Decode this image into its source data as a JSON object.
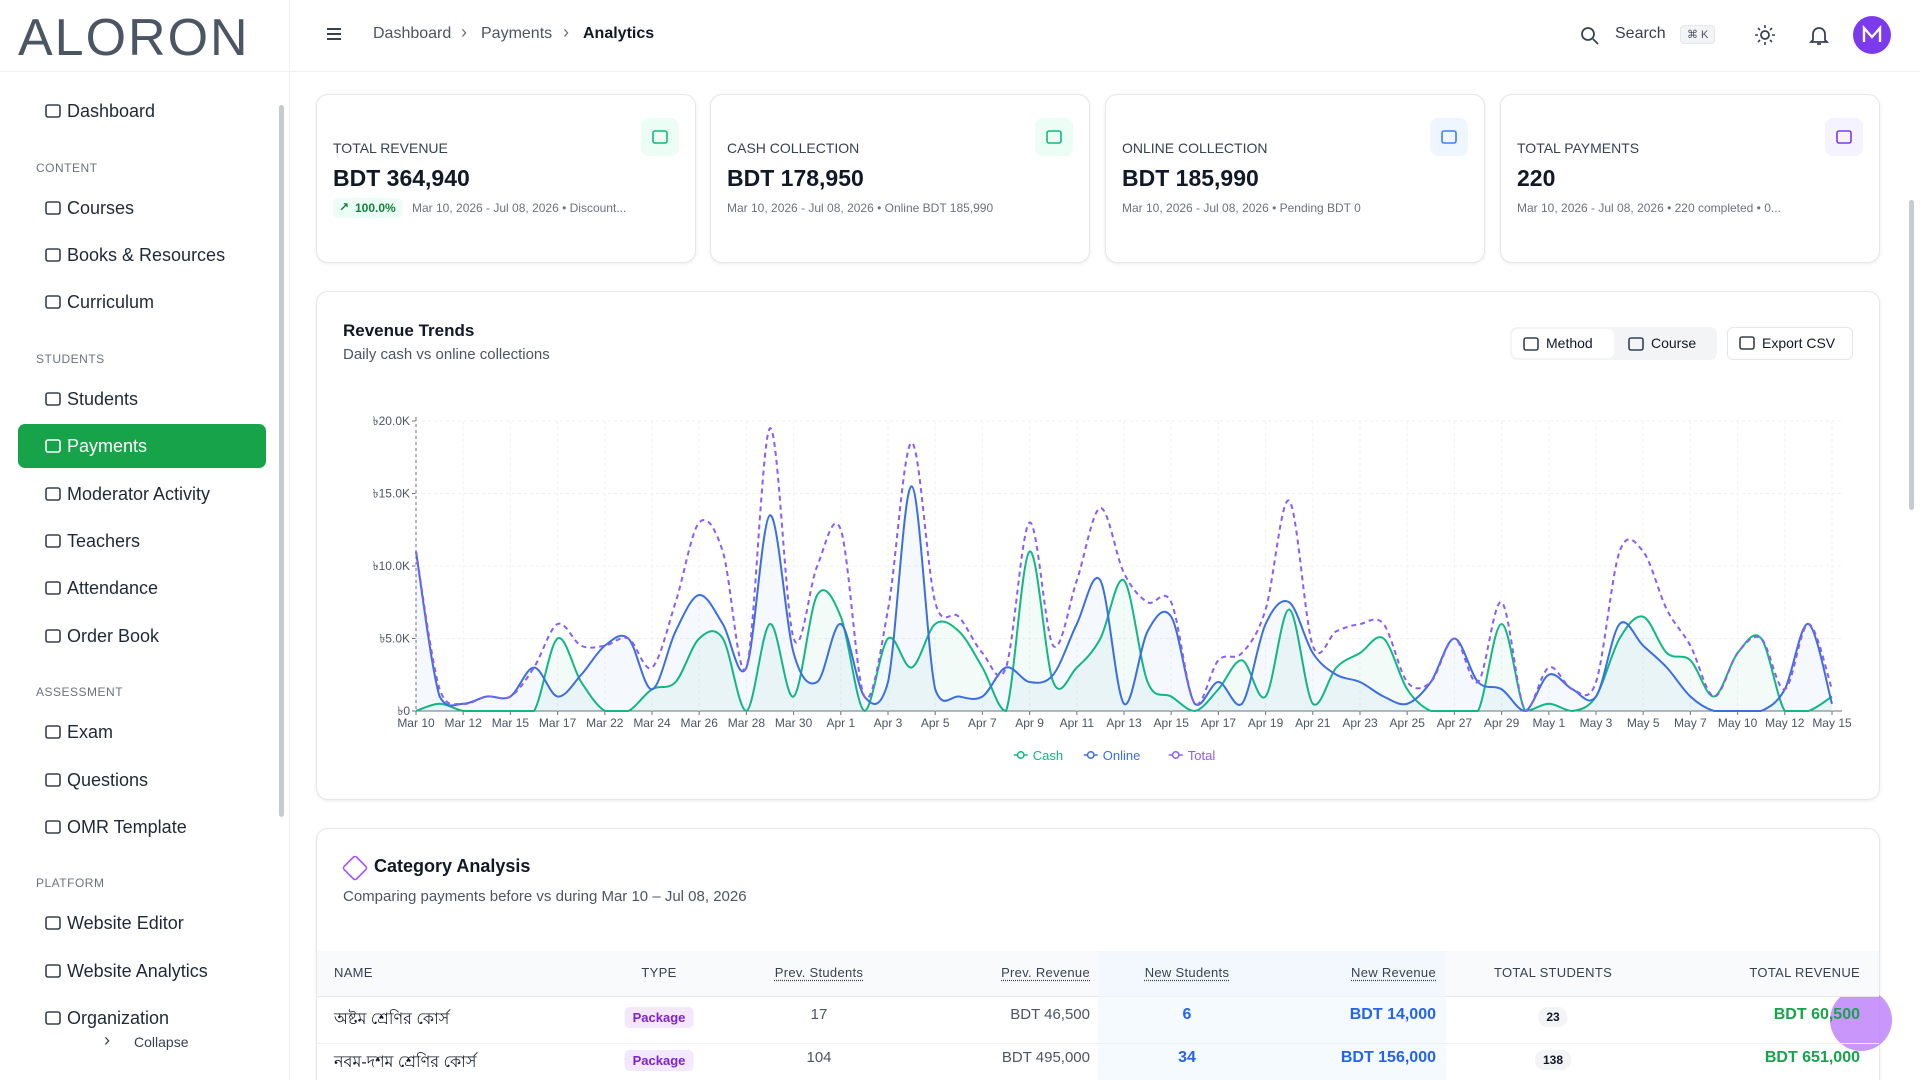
{
  "logo": "ALORON",
  "sidebar": {
    "top": "Dashboard",
    "active_item": "Payments",
    "sections": [
      {
        "heading": "CONTENT",
        "items": [
          "Courses",
          "Books & Resources",
          "Curriculum"
        ]
      },
      {
        "heading": "STUDENTS",
        "items": [
          "Students",
          "Payments",
          "Moderator Activity",
          "Teachers",
          "Attendance",
          "Order Book"
        ]
      },
      {
        "heading": "ASSESSMENT",
        "items": [
          "Exam",
          "Questions",
          "OMR Template"
        ]
      },
      {
        "heading": "PLATFORM",
        "items": [
          "Website Editor",
          "Website Analytics",
          "Organization"
        ]
      }
    ],
    "collapse": "Collapse"
  },
  "header": {
    "breadcrumbs": [
      "Dashboard",
      "Payments",
      "Analytics"
    ],
    "search": "Search",
    "shortcut": "⌘ K"
  },
  "cards": [
    {
      "label": "TOTAL REVENUE",
      "value": "BDT 364,940",
      "badge": "100.0%",
      "subtitle": "Mar 10, 2026 - Jul 08, 2026 • Discount..."
    },
    {
      "label": "CASH COLLECTION",
      "value": "BDT 178,950",
      "subtitle": "Mar 10, 2026 - Jul 08, 2026 • Online BDT 185,990"
    },
    {
      "label": "ONLINE COLLECTION",
      "value": "BDT 185,990",
      "subtitle": "Mar 10, 2026 - Jul 08, 2026 • Pending BDT 0"
    },
    {
      "label": "TOTAL PAYMENTS",
      "value": "220",
      "subtitle": "Mar 10, 2026 - Jul 08, 2026 • 220 completed • 0..."
    }
  ],
  "chart_panel": {
    "title": "Revenue Trends",
    "subtitle": "Daily cash vs online collections",
    "buttons": [
      "Method",
      "Course",
      "Export CSV"
    ]
  },
  "chart_data": {
    "type": "line",
    "categories": [
      "Mar 10",
      null,
      "Mar 12",
      null,
      "Mar 15",
      null,
      "Mar 17",
      null,
      "Mar 22",
      null,
      "Mar 24",
      null,
      "Mar 26",
      null,
      "Mar 28",
      null,
      "Mar 30",
      null,
      "Apr 1",
      null,
      "Apr 3",
      null,
      "Apr 5",
      null,
      "Apr 7",
      null,
      "Apr 9",
      null,
      "Apr 11",
      null,
      "Apr 13",
      null,
      "Apr 15",
      null,
      "Apr 17",
      null,
      "Apr 19",
      null,
      "Apr 21",
      null,
      "Apr 23",
      null,
      "Apr 25",
      null,
      "Apr 27",
      null,
      "Apr 29",
      null,
      "May 1",
      null,
      "May 3",
      null,
      "May 5",
      null,
      "May 7",
      null,
      "May 10",
      null,
      "May 12",
      null,
      "May 15"
    ],
    "series": [
      {
        "name": "Cash",
        "color": "#10b981",
        "values": [
          0,
          500,
          0,
          0,
          0,
          0,
          5000,
          2000,
          0,
          0,
          1500,
          2000,
          5000,
          5000,
          0,
          6000,
          1000,
          8000,
          6500,
          0,
          5000,
          3000,
          6000,
          5500,
          3000,
          0,
          11000,
          2000,
          3000,
          5000,
          9000,
          2000,
          1000,
          0,
          1500,
          3500,
          1000,
          7000,
          500,
          3000,
          4000,
          5000,
          1500,
          0,
          0,
          0,
          6000,
          0,
          500,
          0,
          1000,
          5000,
          6500,
          4000,
          3500,
          1000,
          4000,
          5000,
          0,
          0,
          1000
        ]
      },
      {
        "name": "Online",
        "color": "#3b6fe0",
        "values": [
          11000,
          1000,
          500,
          1000,
          1000,
          3000,
          1000,
          2500,
          4500,
          5000,
          1500,
          5500,
          8000,
          6000,
          3000,
          13500,
          4000,
          2000,
          6000,
          1000,
          2000,
          15500,
          1500,
          1000,
          1000,
          3000,
          2000,
          2500,
          6000,
          9000,
          500,
          5500,
          6500,
          500,
          2000,
          500,
          6000,
          7500,
          4000,
          2500,
          2000,
          1000,
          500,
          2000,
          5000,
          2000,
          1500,
          0,
          2500,
          1500,
          1000,
          6000,
          4500,
          3000,
          1000,
          0,
          0,
          0,
          1500,
          6000,
          500
        ]
      },
      {
        "name": "Total",
        "color": "#8b5cf6",
        "dashed": true,
        "values": [
          11000,
          1500,
          500,
          1000,
          1000,
          3000,
          6000,
          4500,
          4500,
          5000,
          3000,
          7500,
          13000,
          11000,
          3000,
          19500,
          5000,
          10000,
          12500,
          1000,
          7000,
          18500,
          7500,
          6500,
          4000,
          3000,
          13000,
          4500,
          9000,
          14000,
          9500,
          7500,
          7500,
          500,
          3500,
          4000,
          7000,
          14500,
          4500,
          5500,
          6000,
          6000,
          2000,
          2000,
          5000,
          2000,
          7500,
          0,
          3000,
          1500,
          2000,
          11000,
          11000,
          7000,
          4500,
          1000,
          4000,
          5000,
          1500,
          6000,
          1500
        ]
      }
    ],
    "ylim": [
      0,
      20000
    ],
    "yticks": [
      {
        "value": 0,
        "label": "৳0"
      },
      {
        "value": 5000,
        "label": "৳5.0K"
      },
      {
        "value": 10000,
        "label": "৳10.0K"
      },
      {
        "value": 15000,
        "label": "৳15.0K"
      },
      {
        "value": 20000,
        "label": "৳20.0K"
      }
    ],
    "grid": true,
    "legend": "bottom"
  },
  "table": {
    "title": "Category Analysis",
    "subtitle": "Comparing payments before vs during Mar 10 – Jul 08, 2026",
    "columns": [
      "NAME",
      "TYPE",
      "Prev. Students",
      "Prev. Revenue",
      "New Students",
      "New Revenue",
      "TOTAL STUDENTS",
      "TOTAL REVENUE"
    ],
    "rows": [
      [
        "অষ্টম শ্রেণির কোর্স",
        "Package",
        "17",
        "BDT 46,500",
        "6",
        "BDT 14,000",
        "23",
        "BDT 60,500"
      ],
      [
        "নবম-দশম শ্রেণির কোর্স",
        "Package",
        "104",
        "BDT 495,000",
        "34",
        "BDT 156,000",
        "138",
        "BDT 651,000"
      ]
    ]
  }
}
